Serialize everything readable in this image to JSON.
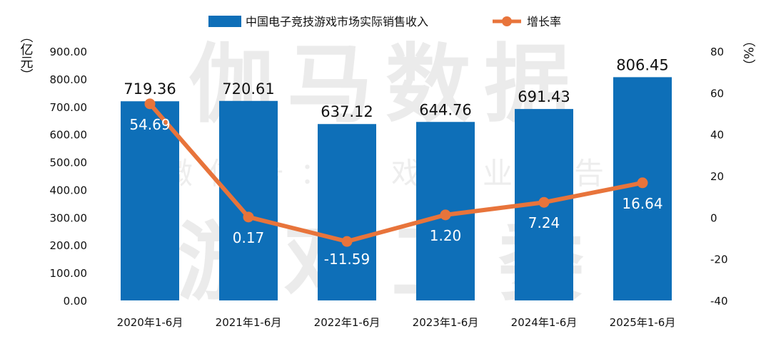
{
  "chart_data": {
    "type": "bar",
    "categories": [
      "2020年1-6月",
      "2021年1-6月",
      "2022年1-6月",
      "2023年1-6月",
      "2024年1-6月",
      "2025年1-6月"
    ],
    "series": [
      {
        "name": "中国电子竞技游戏市场实际销售收入",
        "type": "bar",
        "axis": "left",
        "values": [
          719.36,
          720.61,
          637.12,
          644.76,
          691.43,
          806.45
        ],
        "labels": [
          "719.36",
          "720.61",
          "637.12",
          "644.76",
          "691.43",
          "806.45"
        ],
        "color": "#0E6FB8"
      },
      {
        "name": "增长率",
        "type": "line",
        "axis": "right",
        "values": [
          54.69,
          0.17,
          -11.59,
          1.2,
          7.24,
          16.64
        ],
        "labels": [
          "54.69",
          "0.17",
          "-11.59",
          "1.20",
          "7.24",
          "16.64"
        ],
        "color": "#E8743B"
      }
    ],
    "y_left": {
      "unit_label": "（亿元）",
      "ylim": [
        0,
        900
      ],
      "ticks": [
        "0.00",
        "100.00",
        "200.00",
        "300.00",
        "400.00",
        "500.00",
        "600.00",
        "700.00",
        "800.00",
        "900.00"
      ]
    },
    "y_right": {
      "unit_label": "（%）",
      "ylim": [
        -40,
        80
      ],
      "ticks": [
        "-40",
        "-20",
        "0",
        "20",
        "40",
        "60",
        "80"
      ]
    },
    "legend_position": "top-center",
    "grid": false
  },
  "watermark": {
    "line1": "伽马数据",
    "line2": "微信号：游戏产业报告",
    "line3": "游戏工委"
  },
  "colors": {
    "bar": "#0E6FB8",
    "line": "#E8743B",
    "text": "#111111",
    "bar_label_inside": "#ffffff"
  }
}
